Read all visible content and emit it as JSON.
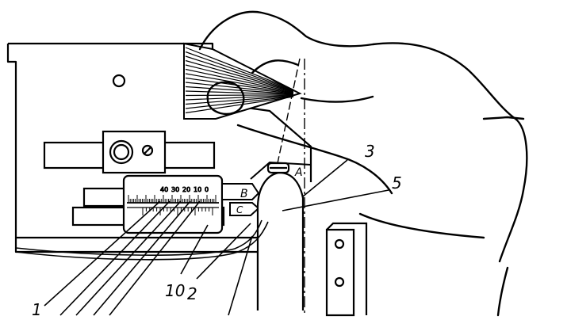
{
  "diagram": {
    "callouts": {
      "c1": "1",
      "c2": "2",
      "c3": "3",
      "c5": "5",
      "c10": "10"
    },
    "markers": {
      "a": "A",
      "b": "B",
      "c": "C"
    },
    "scale_ticks": [
      "40",
      "30",
      "20",
      "10",
      "0"
    ],
    "colors": {
      "ink": "#000000",
      "paper": "#ffffff"
    }
  }
}
